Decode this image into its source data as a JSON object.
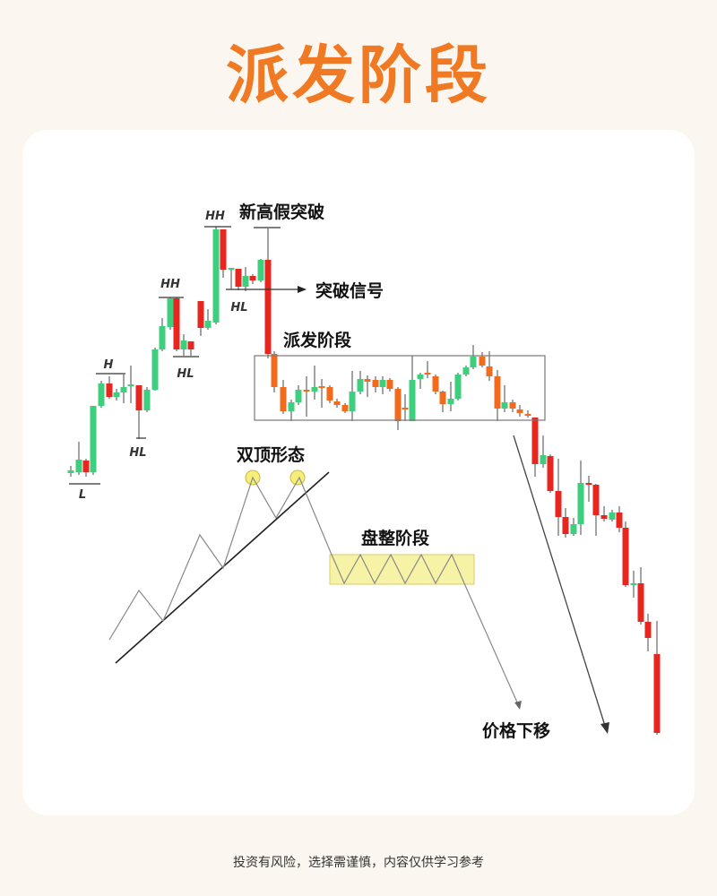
{
  "title": "派发阶段",
  "labels": {
    "fake_breakout": "新高假突破",
    "breakout_signal": "突破信号",
    "distribution": "派发阶段",
    "double_top": "双顶形态",
    "consolidation": "盘整阶段",
    "price_down": "价格下移",
    "hh1": "HH",
    "hh2": "HH",
    "h": "H",
    "hl1": "HL",
    "hl2": "HL",
    "hl3": "HL",
    "l": "L"
  },
  "colors": {
    "title": "#ef7a23",
    "bull": "#3ecf7e",
    "bear": "#e8261f",
    "range_bear": "#f26b1d",
    "highlight": "#f7f3a6"
  },
  "footer": "投资有风险，选择需谨慎，内容仅供学习参考"
}
